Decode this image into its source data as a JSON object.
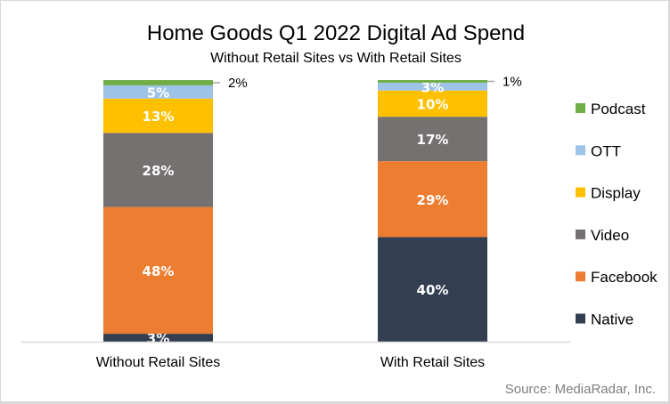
{
  "chart_data": {
    "type": "bar",
    "stacked": true,
    "percent_stacked": true,
    "title": "Home Goods Q1 2022 Digital Ad Spend",
    "subtitle": "Without Retail Sites vs With Retail Sites",
    "xlabel": "",
    "ylabel": "",
    "ylim": [
      0,
      100
    ],
    "grid": false,
    "legend_position": "right",
    "categories": [
      "Without Retail Sites",
      "With Retail Sites"
    ],
    "series": [
      {
        "name": "Native",
        "color": "#333f50",
        "values": [
          3,
          40
        ],
        "labels": [
          "3%",
          "40%"
        ]
      },
      {
        "name": "Facebook",
        "color": "#ed7d31",
        "values": [
          48,
          29
        ],
        "labels": [
          "48%",
          "29%"
        ]
      },
      {
        "name": "Video",
        "color": "#767171",
        "values": [
          28,
          17
        ],
        "labels": [
          "28%",
          "17%"
        ]
      },
      {
        "name": "Display",
        "color": "#ffc000",
        "values": [
          13,
          10
        ],
        "labels": [
          "13%",
          "10%"
        ]
      },
      {
        "name": "OTT",
        "color": "#9dc3e6",
        "values": [
          5,
          3
        ],
        "labels": [
          "5%",
          "3%"
        ]
      },
      {
        "name": "Podcast",
        "color": "#70ad47",
        "values": [
          2,
          1
        ],
        "labels": [
          "2%",
          "1%"
        ]
      }
    ],
    "legend_order": [
      "Podcast",
      "OTT",
      "Display",
      "Video",
      "Facebook",
      "Native"
    ],
    "source": "Source: MediaRadar, Inc."
  }
}
